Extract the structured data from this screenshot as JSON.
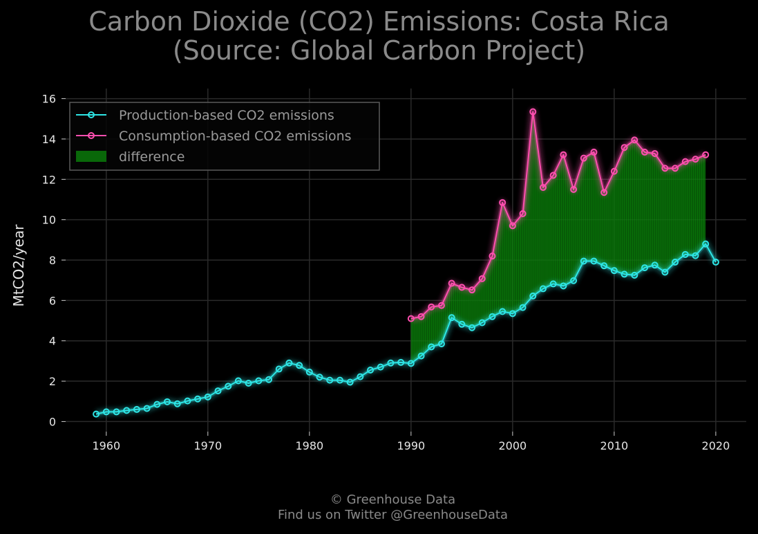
{
  "page": {
    "title_line1": "Carbon Dioxide (CO2) Emissions: Costa Rica",
    "title_line2": "(Source: Global Carbon Project)",
    "footer_line1": "© Greenhouse Data",
    "footer_line2": "Find us on Twitter @GreenhouseData"
  },
  "chart_data": {
    "type": "line",
    "title": "Carbon Dioxide (CO2) Emissions: Costa Rica (Source: Global Carbon Project)",
    "xlabel": "",
    "ylabel": "MtCO2/year",
    "xlim": [
      1956,
      2023
    ],
    "ylim": [
      -0.5,
      16.5
    ],
    "xticks": [
      1960,
      1970,
      1980,
      1990,
      2000,
      2010,
      2020
    ],
    "yticks": [
      0,
      2,
      4,
      6,
      8,
      10,
      12,
      14,
      16
    ],
    "grid": true,
    "legend_position": "top-left",
    "series": [
      {
        "name": "Production-based CO2 emissions",
        "color": "#2ee6e6",
        "x": [
          1959,
          1960,
          1961,
          1962,
          1963,
          1964,
          1965,
          1966,
          1967,
          1968,
          1969,
          1970,
          1971,
          1972,
          1973,
          1974,
          1975,
          1976,
          1977,
          1978,
          1979,
          1980,
          1981,
          1982,
          1983,
          1984,
          1985,
          1986,
          1987,
          1988,
          1989,
          1990,
          1991,
          1992,
          1993,
          1994,
          1995,
          1996,
          1997,
          1998,
          1999,
          2000,
          2001,
          2002,
          2003,
          2004,
          2005,
          2006,
          2007,
          2008,
          2009,
          2010,
          2011,
          2012,
          2013,
          2014,
          2015,
          2016,
          2017,
          2018,
          2019,
          2020
        ],
        "y": [
          0.37,
          0.48,
          0.48,
          0.55,
          0.6,
          0.65,
          0.85,
          0.98,
          0.88,
          1.02,
          1.12,
          1.22,
          1.52,
          1.75,
          2.02,
          1.9,
          2.02,
          2.08,
          2.6,
          2.9,
          2.78,
          2.45,
          2.2,
          2.05,
          2.05,
          1.95,
          2.22,
          2.55,
          2.7,
          2.9,
          2.93,
          2.88,
          3.25,
          3.7,
          3.85,
          5.15,
          4.82,
          4.65,
          4.9,
          5.2,
          5.45,
          5.35,
          5.65,
          6.22,
          6.58,
          6.82,
          6.72,
          6.98,
          7.95,
          7.95,
          7.72,
          7.48,
          7.3,
          7.25,
          7.62,
          7.75,
          7.4,
          7.9,
          8.28,
          8.22,
          8.8,
          7.9
        ]
      },
      {
        "name": "Consumption-based CO2 emissions",
        "color": "#ff4fb0",
        "x": [
          1990,
          1991,
          1992,
          1993,
          1994,
          1995,
          1996,
          1997,
          1998,
          1999,
          2000,
          2001,
          2002,
          2003,
          2004,
          2005,
          2006,
          2007,
          2008,
          2009,
          2010,
          2011,
          2012,
          2013,
          2014,
          2015,
          2016,
          2017,
          2018,
          2019
        ],
        "y": [
          5.1,
          5.2,
          5.68,
          5.75,
          6.85,
          6.65,
          6.52,
          7.08,
          8.2,
          10.85,
          9.7,
          10.3,
          15.35,
          11.6,
          12.2,
          13.22,
          11.5,
          13.05,
          13.35,
          11.35,
          12.4,
          13.58,
          13.95,
          13.35,
          13.28,
          12.55,
          12.55,
          12.88,
          13.0,
          13.22
        ]
      }
    ],
    "fill_between": {
      "name": "difference",
      "color": "#0a7a0a",
      "from": "Production-based CO2 emissions",
      "to": "Consumption-based CO2 emissions",
      "x_range": [
        1990,
        2019
      ]
    },
    "legend": [
      {
        "label": "Production-based CO2 emissions",
        "marker": "line-circle",
        "color": "#2ee6e6"
      },
      {
        "label": "Consumption-based CO2 emissions",
        "marker": "line-circle",
        "color": "#ff4fb0"
      },
      {
        "label": "difference",
        "marker": "patch",
        "color": "#0a7a0a"
      }
    ]
  }
}
